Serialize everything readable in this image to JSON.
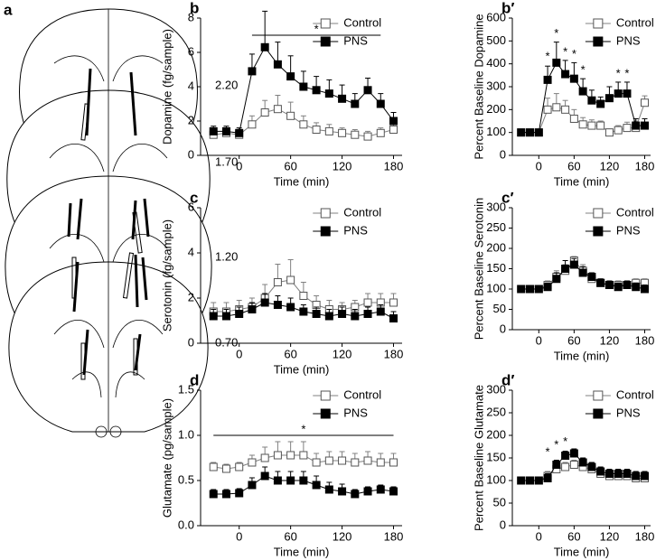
{
  "panel_a": {
    "label": "a",
    "levels": [
      "2.20",
      "1.70",
      "1.20",
      "0.70"
    ]
  },
  "chart_data": [
    {
      "type": "line",
      "panel": "b",
      "ylabel": "Dopamine (fg/sample)",
      "xlabel": "Time (min)",
      "x": [
        -30,
        -15,
        0,
        15,
        30,
        45,
        60,
        75,
        90,
        105,
        120,
        135,
        150,
        165,
        180
      ],
      "xlim": [
        -45,
        190
      ],
      "xticks": [
        0,
        60,
        120,
        180
      ],
      "ylim": [
        0,
        8
      ],
      "yticks": [
        0,
        2,
        4,
        6,
        8
      ],
      "series": [
        {
          "name": "Control",
          "color": "#808080",
          "marker": "open",
          "values": [
            1.2,
            1.3,
            1.2,
            1.8,
            2.5,
            2.7,
            2.3,
            1.8,
            1.5,
            1.4,
            1.3,
            1.2,
            1.1,
            1.3,
            1.5
          ],
          "errors": [
            0.3,
            0.3,
            0.3,
            0.5,
            0.7,
            0.8,
            0.8,
            0.5,
            0.4,
            0.4,
            0.3,
            0.3,
            0.3,
            0.3,
            0.3
          ]
        },
        {
          "name": "PNS",
          "color": "#000000",
          "marker": "filled",
          "values": [
            1.4,
            1.4,
            1.3,
            4.9,
            6.3,
            5.3,
            4.6,
            4.0,
            3.8,
            3.6,
            3.3,
            3.0,
            3.8,
            3.0,
            2.0
          ],
          "errors": [
            0.3,
            0.3,
            0.3,
            1.0,
            2.1,
            1.3,
            1.2,
            0.9,
            0.8,
            0.8,
            0.8,
            0.6,
            0.7,
            0.6,
            0.5
          ]
        }
      ],
      "bracket": {
        "text": "*",
        "x": [
          15,
          165
        ],
        "y": 7
      }
    },
    {
      "type": "line",
      "panel": "b′",
      "ylabel": "Percent Baseline Dopamine",
      "xlabel": "Time (min)",
      "x": [
        -30,
        -15,
        0,
        15,
        30,
        45,
        60,
        75,
        90,
        105,
        120,
        135,
        150,
        165,
        180
      ],
      "xlim": [
        -45,
        190
      ],
      "xticks": [
        0,
        60,
        120,
        180
      ],
      "ylim": [
        0,
        600
      ],
      "yticks": [
        0,
        100,
        200,
        300,
        400,
        500,
        600
      ],
      "series": [
        {
          "name": "Control",
          "color": "#808080",
          "marker": "open",
          "values": [
            100,
            100,
            100,
            200,
            210,
            200,
            160,
            135,
            130,
            130,
            100,
            110,
            120,
            120,
            230
          ],
          "errors": [
            10,
            10,
            10,
            50,
            60,
            40,
            40,
            30,
            25,
            20,
            15,
            20,
            25,
            30,
            30
          ]
        },
        {
          "name": "PNS",
          "color": "#000000",
          "marker": "filled",
          "values": [
            100,
            100,
            100,
            330,
            405,
            355,
            335,
            280,
            240,
            225,
            250,
            270,
            270,
            130,
            130
          ],
          "errors": [
            10,
            10,
            10,
            60,
            90,
            60,
            70,
            55,
            45,
            30,
            50,
            50,
            50,
            30,
            30
          ]
        }
      ],
      "annotations": [
        {
          "text": "*",
          "x": 15,
          "y": 430
        },
        {
          "text": "*",
          "x": 30,
          "y": 530
        },
        {
          "text": "*",
          "x": 45,
          "y": 450
        },
        {
          "text": "*",
          "x": 60,
          "y": 440
        },
        {
          "text": "*",
          "x": 75,
          "y": 370
        },
        {
          "text": "*",
          "x": 135,
          "y": 355
        },
        {
          "text": "*",
          "x": 150,
          "y": 355
        }
      ]
    },
    {
      "type": "line",
      "panel": "c",
      "ylabel": "Serotonin (fg/sample)",
      "xlabel": "Time (min)",
      "x": [
        -30,
        -15,
        0,
        15,
        30,
        45,
        60,
        75,
        90,
        105,
        120,
        135,
        150,
        165,
        180
      ],
      "xlim": [
        -45,
        190
      ],
      "xticks": [
        0,
        60,
        120,
        180
      ],
      "ylim": [
        0,
        6
      ],
      "yticks": [
        0,
        2,
        4,
        6
      ],
      "series": [
        {
          "name": "Control",
          "color": "#808080",
          "marker": "open",
          "values": [
            1.4,
            1.4,
            1.5,
            1.6,
            2.0,
            2.7,
            2.8,
            2.1,
            1.7,
            1.5,
            1.5,
            1.6,
            1.8,
            1.8,
            1.8
          ],
          "errors": [
            0.4,
            0.4,
            0.4,
            0.4,
            0.6,
            0.8,
            0.9,
            0.6,
            0.4,
            0.4,
            0.3,
            0.3,
            0.4,
            0.4,
            0.4
          ]
        },
        {
          "name": "PNS",
          "color": "#000000",
          "marker": "filled",
          "values": [
            1.2,
            1.2,
            1.3,
            1.5,
            1.8,
            1.7,
            1.6,
            1.4,
            1.3,
            1.2,
            1.3,
            1.2,
            1.3,
            1.4,
            1.1
          ],
          "errors": [
            0.3,
            0.3,
            0.3,
            0.3,
            0.4,
            0.4,
            0.4,
            0.3,
            0.3,
            0.3,
            0.3,
            0.3,
            0.3,
            0.3,
            0.3
          ]
        }
      ]
    },
    {
      "type": "line",
      "panel": "c′",
      "ylabel": "Percent Baseline Serotonin",
      "xlabel": "Time (min)",
      "x": [
        -30,
        -15,
        0,
        15,
        30,
        45,
        60,
        75,
        90,
        105,
        120,
        135,
        150,
        165,
        180
      ],
      "xlim": [
        -45,
        190
      ],
      "xticks": [
        0,
        60,
        120,
        180
      ],
      "ylim": [
        0,
        300
      ],
      "yticks": [
        0,
        50,
        100,
        150,
        200,
        250,
        300
      ],
      "series": [
        {
          "name": "Control",
          "color": "#808080",
          "marker": "open",
          "values": [
            100,
            100,
            100,
            110,
            130,
            145,
            170,
            145,
            125,
            115,
            110,
            110,
            110,
            115,
            115
          ],
          "errors": [
            5,
            5,
            5,
            10,
            15,
            15,
            10,
            15,
            10,
            10,
            10,
            10,
            10,
            10,
            10
          ]
        },
        {
          "name": "PNS",
          "color": "#000000",
          "marker": "filled",
          "values": [
            100,
            100,
            100,
            105,
            125,
            150,
            160,
            140,
            130,
            115,
            110,
            105,
            110,
            105,
            100
          ],
          "errors": [
            5,
            5,
            5,
            10,
            15,
            20,
            15,
            15,
            10,
            10,
            10,
            10,
            10,
            10,
            10
          ]
        }
      ]
    },
    {
      "type": "line",
      "panel": "d",
      "ylabel": "Glutamate (pg/sample)",
      "xlabel": "Time (min)",
      "x": [
        -30,
        -15,
        0,
        15,
        30,
        45,
        60,
        75,
        90,
        105,
        120,
        135,
        150,
        165,
        180
      ],
      "xlim": [
        -45,
        190
      ],
      "xticks": [
        0,
        60,
        120,
        180
      ],
      "ylim": [
        0,
        1.5
      ],
      "yticks": [
        {
          "value": 0,
          "label": "0.0"
        },
        0.5,
        {
          "value": 1,
          "label": "1.0"
        },
        1.5
      ],
      "series": [
        {
          "name": "Control",
          "color": "#808080",
          "marker": "open",
          "values": [
            0.65,
            0.63,
            0.65,
            0.7,
            0.75,
            0.78,
            0.78,
            0.78,
            0.7,
            0.72,
            0.72,
            0.7,
            0.72,
            0.7,
            0.7
          ],
          "errors": [
            0.05,
            0.05,
            0.05,
            0.08,
            0.12,
            0.15,
            0.15,
            0.15,
            0.1,
            0.1,
            0.1,
            0.1,
            0.1,
            0.1,
            0.1
          ]
        },
        {
          "name": "PNS",
          "color": "#000000",
          "marker": "filled",
          "values": [
            0.35,
            0.35,
            0.36,
            0.45,
            0.55,
            0.5,
            0.5,
            0.5,
            0.45,
            0.4,
            0.38,
            0.35,
            0.38,
            0.4,
            0.38
          ],
          "errors": [
            0.05,
            0.05,
            0.05,
            0.08,
            0.1,
            0.1,
            0.1,
            0.1,
            0.1,
            0.08,
            0.08,
            0.05,
            0.05,
            0.05,
            0.05
          ]
        }
      ],
      "bracket": {
        "text": "*",
        "x": [
          -30,
          180
        ],
        "y": 1
      }
    },
    {
      "type": "line",
      "panel": "d′",
      "ylabel": "Percent Baseline Glutamate",
      "xlabel": "Time (min)",
      "x": [
        -30,
        -15,
        0,
        15,
        30,
        45,
        60,
        75,
        90,
        105,
        120,
        135,
        150,
        165,
        180
      ],
      "xlim": [
        -45,
        190
      ],
      "xticks": [
        0,
        60,
        120,
        180
      ],
      "ylim": [
        0,
        300
      ],
      "yticks": [
        0,
        50,
        100,
        150,
        200,
        250,
        300
      ],
      "series": [
        {
          "name": "Control",
          "color": "#808080",
          "marker": "open",
          "values": [
            100,
            100,
            100,
            110,
            125,
            130,
            135,
            130,
            125,
            115,
            110,
            110,
            110,
            105,
            105
          ],
          "errors": [
            5,
            5,
            5,
            10,
            10,
            10,
            10,
            10,
            10,
            10,
            10,
            10,
            10,
            10,
            10
          ]
        },
        {
          "name": "PNS",
          "color": "#000000",
          "marker": "filled",
          "values": [
            100,
            100,
            100,
            105,
            135,
            155,
            160,
            140,
            130,
            120,
            115,
            115,
            115,
            110,
            110
          ],
          "errors": [
            5,
            5,
            5,
            10,
            10,
            10,
            10,
            10,
            10,
            10,
            10,
            10,
            10,
            10,
            10
          ]
        }
      ],
      "annotations": [
        {
          "text": "*",
          "x": 15,
          "y": 162
        },
        {
          "text": "*",
          "x": 30,
          "y": 178
        },
        {
          "text": "*",
          "x": 45,
          "y": 185
        }
      ]
    }
  ]
}
